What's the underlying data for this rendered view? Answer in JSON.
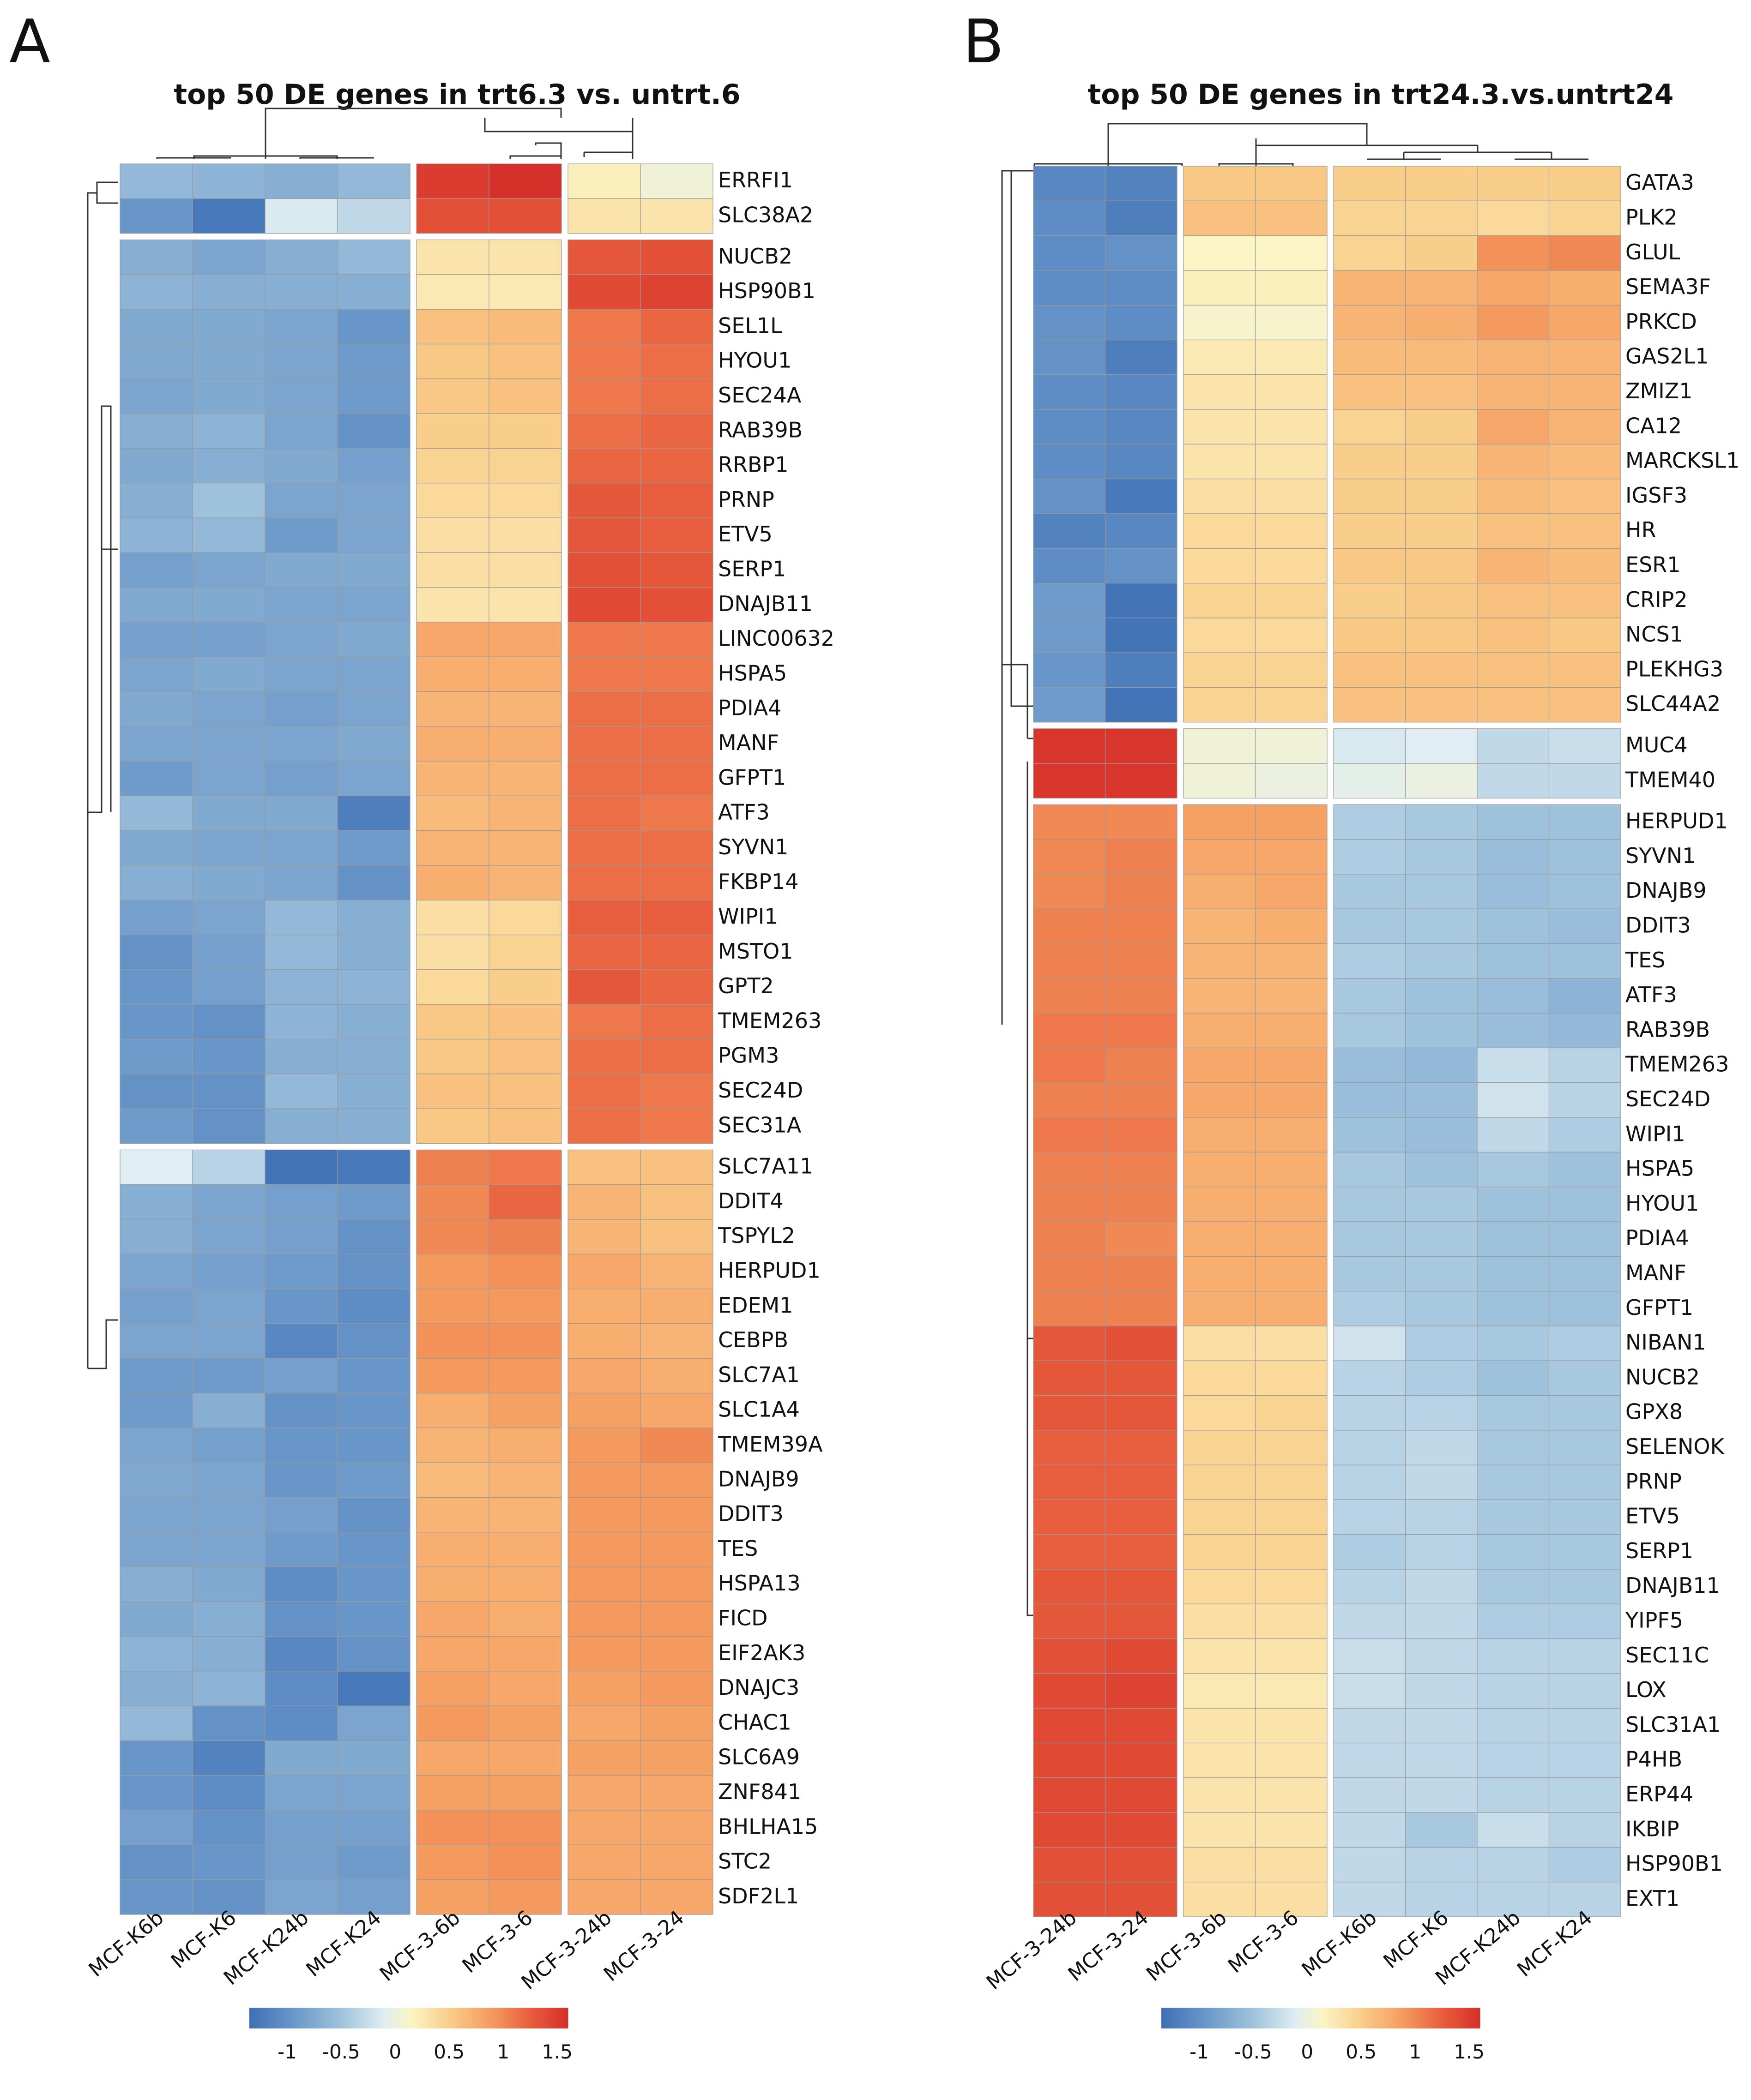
{
  "figure": {
    "legend_ticks": [
      "-1",
      "-0.5",
      "0",
      "0.5",
      "1",
      "1.5"
    ],
    "color_scale": {
      "min": -1.35,
      "max": 1.6,
      "stops": [
        {
          "v": -1.35,
          "c": "#3d6fb5"
        },
        {
          "v": -0.9,
          "c": "#6f9bcb"
        },
        {
          "v": -0.5,
          "c": "#9fc2dc"
        },
        {
          "v": -0.1,
          "c": "#e0eef3"
        },
        {
          "v": 0.15,
          "c": "#fbf4c4"
        },
        {
          "v": 0.5,
          "c": "#f9ce8a"
        },
        {
          "v": 0.9,
          "c": "#f59a5e"
        },
        {
          "v": 1.25,
          "c": "#e85d3e"
        },
        {
          "v": 1.6,
          "c": "#d5302a"
        }
      ]
    }
  },
  "chart_data": [
    {
      "type": "heatmap",
      "panel_label": "A",
      "title": "top 50 DE genes in trt6.3 vs. untrt.6",
      "columns": [
        "MCF-K6b",
        "MCF-K6",
        "MCF-K24b",
        "MCF-K24",
        "MCF-3-6b",
        "MCF-3-6",
        "MCF-3-24b",
        "MCF-3-24"
      ],
      "column_breaks": [
        4,
        6
      ],
      "row_breaks": [
        2,
        28
      ],
      "rows": [
        "ERRFI1",
        "SLC38A2",
        "NUCB2",
        "HSP90B1",
        "SEL1L",
        "HYOU1",
        "SEC24A",
        "RAB39B",
        "RRBP1",
        "PRNP",
        "ETV5",
        "SERP1",
        "DNAJB11",
        "LINC00632",
        "HSPA5",
        "PDIA4",
        "MANF",
        "GFPT1",
        "ATF3",
        "SYVN1",
        "FKBP14",
        "WIPI1",
        "MSTO1",
        "GPT2",
        "TMEM263",
        "PGM3",
        "SEC24D",
        "SEC31A",
        "SLC7A11",
        "DDIT4",
        "TSPYL2",
        "HERPUD1",
        "EDEM1",
        "CEBPB",
        "SLC7A1",
        "SLC1A4",
        "TMEM39A",
        "DNAJB9",
        "DDIT3",
        "TES",
        "HSPA13",
        "FICD",
        "EIF2AK3",
        "DNAJC3",
        "CHAC1",
        "SLC6A9",
        "ZNF841",
        "BHLHA15",
        "STC2",
        "SDF2L1"
      ],
      "values": [
        [
          -0.6,
          -0.65,
          -0.7,
          -0.6,
          1.5,
          1.6,
          0.2,
          0.05
        ],
        [
          -0.95,
          -1.25,
          -0.15,
          -0.3,
          1.35,
          1.35,
          0.3,
          0.3
        ],
        [
          -0.7,
          -0.8,
          -0.7,
          -0.6,
          0.3,
          0.3,
          1.3,
          1.35
        ],
        [
          -0.65,
          -0.7,
          -0.7,
          -0.7,
          0.25,
          0.25,
          1.4,
          1.45
        ],
        [
          -0.75,
          -0.75,
          -0.8,
          -0.95,
          0.6,
          0.65,
          1.1,
          1.2
        ],
        [
          -0.75,
          -0.75,
          -0.8,
          -0.9,
          0.55,
          0.6,
          1.1,
          1.15
        ],
        [
          -0.8,
          -0.75,
          -0.8,
          -0.9,
          0.55,
          0.6,
          1.1,
          1.15
        ],
        [
          -0.7,
          -0.65,
          -0.8,
          -1.0,
          0.5,
          0.5,
          1.15,
          1.2
        ],
        [
          -0.75,
          -0.7,
          -0.75,
          -0.85,
          0.45,
          0.45,
          1.2,
          1.2
        ],
        [
          -0.7,
          -0.5,
          -0.8,
          -0.8,
          0.4,
          0.4,
          1.3,
          1.25
        ],
        [
          -0.65,
          -0.6,
          -0.9,
          -0.8,
          0.35,
          0.35,
          1.3,
          1.25
        ],
        [
          -0.85,
          -0.8,
          -0.75,
          -0.75,
          0.35,
          0.35,
          1.35,
          1.3
        ],
        [
          -0.75,
          -0.75,
          -0.8,
          -0.8,
          0.3,
          0.3,
          1.4,
          1.35
        ],
        [
          -0.85,
          -0.85,
          -0.8,
          -0.75,
          0.8,
          0.8,
          1.1,
          1.1
        ],
        [
          -0.8,
          -0.75,
          -0.8,
          -0.8,
          0.75,
          0.75,
          1.1,
          1.1
        ],
        [
          -0.75,
          -0.8,
          -0.85,
          -0.8,
          0.7,
          0.7,
          1.15,
          1.15
        ],
        [
          -0.8,
          -0.8,
          -0.8,
          -0.75,
          0.75,
          0.75,
          1.15,
          1.15
        ],
        [
          -0.9,
          -0.8,
          -0.85,
          -0.8,
          0.7,
          0.7,
          1.15,
          1.15
        ],
        [
          -0.6,
          -0.75,
          -0.75,
          -1.2,
          0.65,
          0.7,
          1.15,
          1.1
        ],
        [
          -0.75,
          -0.8,
          -0.8,
          -0.9,
          0.7,
          0.7,
          1.15,
          1.15
        ],
        [
          -0.7,
          -0.75,
          -0.8,
          -1.0,
          0.75,
          0.7,
          1.15,
          1.15
        ],
        [
          -0.85,
          -0.8,
          -0.6,
          -0.7,
          0.35,
          0.4,
          1.25,
          1.25
        ],
        [
          -1.0,
          -0.85,
          -0.6,
          -0.7,
          0.35,
          0.45,
          1.2,
          1.2
        ],
        [
          -0.95,
          -0.85,
          -0.65,
          -0.65,
          0.4,
          0.5,
          1.3,
          1.2
        ],
        [
          -0.95,
          -1.0,
          -0.65,
          -0.7,
          0.55,
          0.6,
          1.1,
          1.15
        ],
        [
          -0.9,
          -0.95,
          -0.7,
          -0.7,
          0.55,
          0.6,
          1.15,
          1.15
        ],
        [
          -1.0,
          -1.0,
          -0.6,
          -0.7,
          0.6,
          0.6,
          1.15,
          1.1
        ],
        [
          -0.9,
          -1.0,
          -0.7,
          -0.7,
          0.55,
          0.6,
          1.15,
          1.1
        ],
        [
          -0.1,
          -0.35,
          -1.3,
          -1.25,
          1.05,
          1.1,
          0.6,
          0.6
        ],
        [
          -0.7,
          -0.8,
          -0.85,
          -0.9,
          1.0,
          1.2,
          0.7,
          0.6
        ],
        [
          -0.7,
          -0.8,
          -0.85,
          -1.0,
          1.0,
          1.05,
          0.7,
          0.6
        ],
        [
          -0.8,
          -0.85,
          -0.9,
          -1.0,
          0.9,
          0.95,
          0.8,
          0.7
        ],
        [
          -0.85,
          -0.8,
          -0.95,
          -1.05,
          0.9,
          0.9,
          0.75,
          0.75
        ],
        [
          -0.8,
          -0.8,
          -1.1,
          -1.0,
          0.95,
          0.95,
          0.75,
          0.7
        ],
        [
          -0.9,
          -0.9,
          -0.85,
          -0.95,
          0.9,
          0.9,
          0.8,
          0.75
        ],
        [
          -0.9,
          -0.7,
          -1.0,
          -0.95,
          0.75,
          0.85,
          0.85,
          0.8
        ],
        [
          -0.8,
          -0.85,
          -0.95,
          -0.95,
          0.7,
          0.75,
          0.9,
          1.0
        ],
        [
          -0.75,
          -0.8,
          -0.95,
          -0.9,
          0.65,
          0.7,
          0.9,
          0.9
        ],
        [
          -0.8,
          -0.8,
          -0.85,
          -1.0,
          0.7,
          0.7,
          0.9,
          0.9
        ],
        [
          -0.8,
          -0.8,
          -0.9,
          -0.95,
          0.75,
          0.75,
          0.9,
          0.9
        ],
        [
          -0.7,
          -0.75,
          -1.05,
          -0.95,
          0.75,
          0.75,
          0.9,
          0.9
        ],
        [
          -0.75,
          -0.7,
          -1.0,
          -0.95,
          0.8,
          0.75,
          0.9,
          0.9
        ],
        [
          -0.65,
          -0.7,
          -1.1,
          -1.0,
          0.8,
          0.8,
          0.9,
          0.9
        ],
        [
          -0.7,
          -0.65,
          -1.05,
          -1.25,
          0.85,
          0.8,
          0.85,
          0.9
        ],
        [
          -0.6,
          -1.0,
          -1.05,
          -0.8,
          0.9,
          0.85,
          0.8,
          0.85
        ],
        [
          -0.95,
          -1.15,
          -0.75,
          -0.75,
          0.8,
          0.8,
          0.85,
          0.85
        ],
        [
          -0.95,
          -1.05,
          -0.8,
          -0.8,
          0.85,
          0.85,
          0.8,
          0.8
        ],
        [
          -0.85,
          -1.0,
          -0.85,
          -0.85,
          0.95,
          0.95,
          0.8,
          0.8
        ],
        [
          -1.0,
          -0.95,
          -0.85,
          -0.9,
          0.9,
          0.95,
          0.8,
          0.8
        ],
        [
          -0.95,
          -1.0,
          -0.8,
          -0.85,
          0.85,
          0.9,
          0.8,
          0.8
        ]
      ]
    },
    {
      "type": "heatmap",
      "panel_label": "B",
      "title": "top 50 DE genes in trt24.3.vs.untrt24",
      "columns": [
        "MCF-3-24b",
        "MCF-3-24",
        "MCF-3-6b",
        "MCF-3-6",
        "MCF-K6b",
        "MCF-K6",
        "MCF-K24b",
        "MCF-K24"
      ],
      "column_breaks": [
        2,
        4
      ],
      "row_breaks": [
        16,
        18
      ],
      "rows": [
        "GATA3",
        "PLK2",
        "GLUL",
        "SEMA3F",
        "PRKCD",
        "GAS2L1",
        "ZMIZ1",
        "CA12",
        "MARCKSL1",
        "IGSF3",
        "HR",
        "ESR1",
        "CRIP2",
        "NCS1",
        "PLEKHG3",
        "SLC44A2",
        "MUC4",
        "TMEM40",
        "HERPUD1",
        "SYVN1",
        "DNAJB9",
        "DDIT3",
        "TES",
        "ATF3",
        "RAB39B",
        "TMEM263",
        "SEC24D",
        "WIPI1",
        "HSPA5",
        "HYOU1",
        "PDIA4",
        "MANF",
        "GFPT1",
        "NIBAN1",
        "NUCB2",
        "GPX8",
        "SELENOK",
        "PRNP",
        "ETV5",
        "SERP1",
        "DNAJB11",
        "YIPF5",
        "SEC11C",
        "LOX",
        "SLC31A1",
        "P4HB",
        "ERP44",
        "IKBIP",
        "HSP90B1",
        "EXT1"
      ],
      "values": [
        [
          -1.1,
          -1.15,
          0.55,
          0.55,
          0.5,
          0.5,
          0.5,
          0.5
        ],
        [
          -1.05,
          -1.2,
          0.6,
          0.6,
          0.45,
          0.45,
          0.4,
          0.45
        ],
        [
          -1.05,
          -1.0,
          0.15,
          0.15,
          0.45,
          0.5,
          0.95,
          1.0
        ],
        [
          -1.05,
          -1.05,
          0.2,
          0.2,
          0.7,
          0.7,
          0.8,
          0.75
        ],
        [
          -1.0,
          -1.05,
          0.1,
          0.1,
          0.7,
          0.75,
          0.9,
          0.8
        ],
        [
          -1.0,
          -1.2,
          0.25,
          0.25,
          0.65,
          0.65,
          0.7,
          0.7
        ],
        [
          -1.05,
          -1.1,
          0.3,
          0.3,
          0.6,
          0.6,
          0.7,
          0.7
        ],
        [
          -1.05,
          -1.1,
          0.3,
          0.3,
          0.45,
          0.5,
          0.8,
          0.7
        ],
        [
          -1.05,
          -1.1,
          0.3,
          0.3,
          0.5,
          0.5,
          0.7,
          0.65
        ],
        [
          -1.0,
          -1.25,
          0.35,
          0.35,
          0.5,
          0.5,
          0.65,
          0.6
        ],
        [
          -1.15,
          -1.1,
          0.4,
          0.4,
          0.5,
          0.5,
          0.6,
          0.6
        ],
        [
          -1.05,
          -1.0,
          0.4,
          0.4,
          0.55,
          0.55,
          0.7,
          0.65
        ],
        [
          -0.9,
          -1.3,
          0.45,
          0.45,
          0.5,
          0.55,
          0.6,
          0.6
        ],
        [
          -0.9,
          -1.3,
          0.4,
          0.4,
          0.55,
          0.55,
          0.6,
          0.55
        ],
        [
          -0.95,
          -1.2,
          0.45,
          0.45,
          0.6,
          0.6,
          0.6,
          0.6
        ],
        [
          -0.9,
          -1.3,
          0.45,
          0.45,
          0.6,
          0.6,
          0.6,
          0.6
        ],
        [
          1.55,
          1.55,
          0.05,
          0.05,
          -0.15,
          -0.1,
          -0.3,
          -0.25
        ],
        [
          1.55,
          1.55,
          0.05,
          0.0,
          -0.05,
          0.0,
          -0.3,
          -0.3
        ],
        [
          1.0,
          1.0,
          0.85,
          0.85,
          -0.4,
          -0.45,
          -0.5,
          -0.5
        ],
        [
          1.0,
          1.05,
          0.8,
          0.8,
          -0.4,
          -0.45,
          -0.55,
          -0.5
        ],
        [
          1.0,
          1.05,
          0.75,
          0.8,
          -0.45,
          -0.45,
          -0.55,
          -0.5
        ],
        [
          1.05,
          1.05,
          0.7,
          0.75,
          -0.45,
          -0.45,
          -0.5,
          -0.55
        ],
        [
          1.05,
          1.05,
          0.7,
          0.7,
          -0.4,
          -0.45,
          -0.5,
          -0.5
        ],
        [
          1.05,
          1.05,
          0.7,
          0.7,
          -0.45,
          -0.5,
          -0.55,
          -0.65
        ],
        [
          1.1,
          1.1,
          0.75,
          0.75,
          -0.45,
          -0.5,
          -0.55,
          -0.6
        ],
        [
          1.1,
          1.05,
          0.8,
          0.8,
          -0.55,
          -0.6,
          -0.25,
          -0.35
        ],
        [
          1.05,
          1.05,
          0.8,
          0.8,
          -0.55,
          -0.55,
          -0.2,
          -0.35
        ],
        [
          1.1,
          1.1,
          0.75,
          0.75,
          -0.5,
          -0.55,
          -0.3,
          -0.4
        ],
        [
          1.05,
          1.05,
          0.75,
          0.75,
          -0.45,
          -0.5,
          -0.45,
          -0.5
        ],
        [
          1.05,
          1.05,
          0.75,
          0.75,
          -0.45,
          -0.45,
          -0.5,
          -0.5
        ],
        [
          1.05,
          1.0,
          0.75,
          0.75,
          -0.45,
          -0.45,
          -0.5,
          -0.5
        ],
        [
          1.05,
          1.05,
          0.75,
          0.75,
          -0.45,
          -0.45,
          -0.5,
          -0.5
        ],
        [
          1.05,
          1.05,
          0.75,
          0.75,
          -0.4,
          -0.45,
          -0.5,
          -0.5
        ],
        [
          1.3,
          1.35,
          0.35,
          0.35,
          -0.2,
          -0.4,
          -0.45,
          -0.4
        ],
        [
          1.3,
          1.3,
          0.4,
          0.4,
          -0.35,
          -0.4,
          -0.5,
          -0.45
        ],
        [
          1.3,
          1.3,
          0.4,
          0.45,
          -0.35,
          -0.35,
          -0.45,
          -0.45
        ],
        [
          1.25,
          1.25,
          0.45,
          0.45,
          -0.35,
          -0.3,
          -0.45,
          -0.45
        ],
        [
          1.25,
          1.25,
          0.45,
          0.45,
          -0.35,
          -0.3,
          -0.45,
          -0.45
        ],
        [
          1.25,
          1.25,
          0.45,
          0.45,
          -0.35,
          -0.35,
          -0.45,
          -0.45
        ],
        [
          1.25,
          1.25,
          0.45,
          0.45,
          -0.4,
          -0.35,
          -0.45,
          -0.45
        ],
        [
          1.3,
          1.3,
          0.4,
          0.4,
          -0.35,
          -0.3,
          -0.45,
          -0.45
        ],
        [
          1.3,
          1.3,
          0.35,
          0.35,
          -0.3,
          -0.3,
          -0.4,
          -0.4
        ],
        [
          1.35,
          1.4,
          0.3,
          0.3,
          -0.25,
          -0.3,
          -0.35,
          -0.35
        ],
        [
          1.4,
          1.45,
          0.25,
          0.25,
          -0.25,
          -0.3,
          -0.35,
          -0.35
        ],
        [
          1.4,
          1.4,
          0.3,
          0.3,
          -0.3,
          -0.3,
          -0.35,
          -0.35
        ],
        [
          1.4,
          1.4,
          0.3,
          0.3,
          -0.3,
          -0.3,
          -0.35,
          -0.35
        ],
        [
          1.4,
          1.4,
          0.3,
          0.3,
          -0.3,
          -0.3,
          -0.35,
          -0.35
        ],
        [
          1.4,
          1.4,
          0.3,
          0.3,
          -0.3,
          -0.45,
          -0.25,
          -0.35
        ],
        [
          1.35,
          1.35,
          0.35,
          0.35,
          -0.3,
          -0.35,
          -0.35,
          -0.4
        ],
        [
          1.35,
          1.35,
          0.35,
          0.35,
          -0.3,
          -0.35,
          -0.35,
          -0.35
        ]
      ]
    }
  ]
}
